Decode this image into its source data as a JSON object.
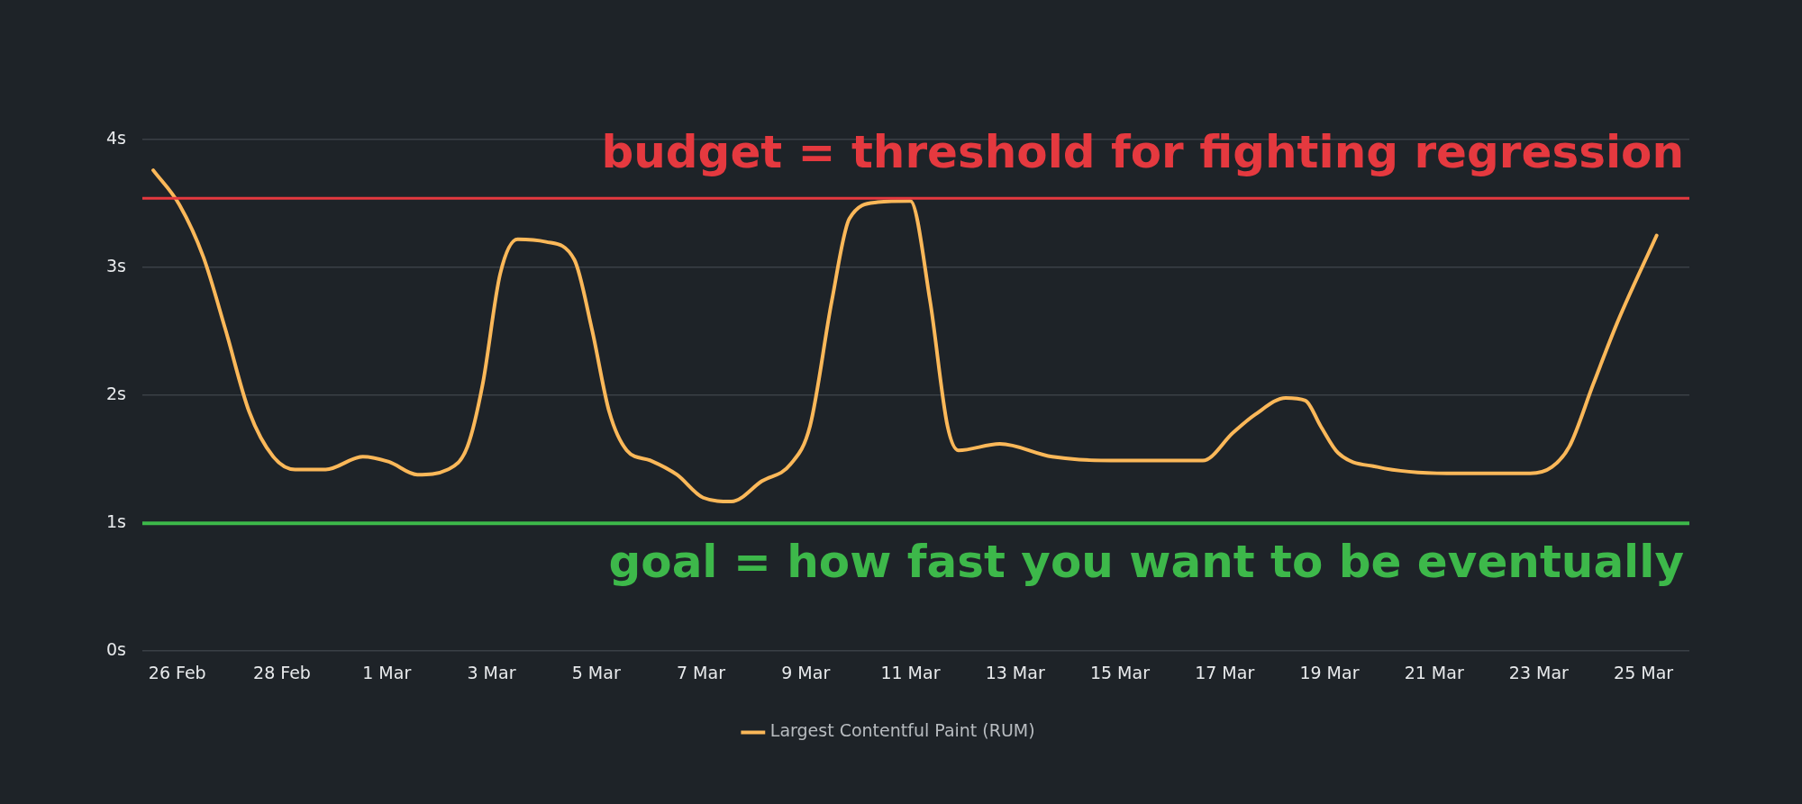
{
  "chart_data": {
    "type": "line",
    "xlim": [
      "--02-25T08:00",
      "--03-25T21:00"
    ],
    "ylim": [
      0,
      4
    ],
    "xticks": [
      {
        "value": "--02-26",
        "label": "26 Feb"
      },
      {
        "value": "--02-28",
        "label": "28 Feb"
      },
      {
        "value": "--03-01",
        "label": "1 Mar"
      },
      {
        "value": "--03-03",
        "label": "3 Mar"
      },
      {
        "value": "--03-05",
        "label": "5 Mar"
      },
      {
        "value": "--03-07",
        "label": "7 Mar"
      },
      {
        "value": "--03-09",
        "label": "9 Mar"
      },
      {
        "value": "--03-11",
        "label": "11 Mar"
      },
      {
        "value": "--03-13",
        "label": "13 Mar"
      },
      {
        "value": "--03-15",
        "label": "15 Mar"
      },
      {
        "value": "--03-17",
        "label": "17 Mar"
      },
      {
        "value": "--03-19",
        "label": "19 Mar"
      },
      {
        "value": "--03-21",
        "label": "21 Mar"
      },
      {
        "value": "--03-23",
        "label": "23 Mar"
      },
      {
        "value": "--03-25",
        "label": "25 Mar"
      }
    ],
    "yticks": [
      {
        "value": 0,
        "label": "0s"
      },
      {
        "value": 1,
        "label": "1s"
      },
      {
        "value": 2,
        "label": "2s"
      },
      {
        "value": 3,
        "label": "3s"
      },
      {
        "value": 4,
        "label": "4s"
      }
    ],
    "grid": "y",
    "legend": "bottom",
    "marker": "none",
    "line_style": "solid",
    "ref_lines": [
      {
        "axis": "y",
        "value": 3.54,
        "label": "budget = threshold for fighting regression",
        "color": "#e5393f"
      },
      {
        "axis": "y",
        "value": 1,
        "label": "goal = how fast you want to be eventually",
        "color": "#3db84a"
      }
    ],
    "series": [
      {
        "name": "Largest Contentful Paint (RUM)",
        "color": "#fbb859",
        "x": [
          "--02-25T13:00",
          "--02-26T01:00",
          "--02-26T12:00",
          "--02-26T22:00",
          "--02-27T09:00",
          "--02-27T20:00",
          "--02-28T06:00",
          "--02-28T20:00",
          "--02-29T13:00",
          "--03-01T01:00",
          "--03-01T14:00",
          "--03-02T04:00",
          "--03-02T13:00",
          "--03-02T20:00",
          "--03-03T04:00",
          "--03-03T12:00",
          "--03-04T01:00",
          "--03-04T14:00",
          "--03-04T22:00",
          "--03-05T06:00",
          "--03-05T14:00",
          "--03-06T01:00",
          "--03-06T13:00",
          "--03-07T01:00",
          "--03-07T14:00",
          "--03-08T04:00",
          "--03-08T17:00",
          "--03-09T02:00",
          "--03-09T12:00",
          "--03-09T20:00",
          "--03-10T09:00",
          "--03-11T00:00",
          "--03-11T09:00",
          "--03-11T17:00",
          "--03-11T22:00",
          "--03-12T17:00",
          "--03-13T17:00",
          "--03-14T20:00",
          "--03-16T14:00",
          "--03-17T04:00",
          "--03-17T14:00",
          "--03-18T04:00",
          "--03-18T13:00",
          "--03-18T20:00",
          "--03-19T04:00",
          "--03-19T22:00",
          "--03-21T06:00",
          "--03-22T20:00",
          "--03-23T06:00",
          "--03-23T14:00",
          "--03-24T01:00",
          "--03-24T12:00",
          "--03-25T06:00"
        ],
        "values": [
          3.76,
          3.49,
          3.08,
          2.52,
          1.87,
          1.52,
          1.42,
          1.42,
          1.52,
          1.48,
          1.38,
          1.42,
          1.6,
          2.09,
          2.95,
          3.22,
          3.2,
          3.06,
          2.52,
          1.87,
          1.57,
          1.49,
          1.38,
          1.2,
          1.17,
          1.33,
          1.46,
          1.76,
          2.74,
          3.38,
          3.51,
          3.52,
          2.74,
          1.76,
          1.57,
          1.62,
          1.52,
          1.49,
          1.49,
          1.71,
          1.85,
          1.98,
          1.96,
          1.76,
          1.55,
          1.44,
          1.39,
          1.39,
          1.44,
          1.6,
          2.09,
          2.57,
          3.25
        ]
      }
    ]
  }
}
